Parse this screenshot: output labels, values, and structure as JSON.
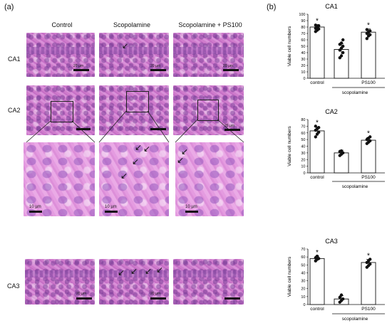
{
  "panel_labels": {
    "a": "(a)",
    "b": "(b)"
  },
  "columns": [
    "Control",
    "Scopolamine",
    "Scopolamine + PS100"
  ],
  "rows": [
    "CA1",
    "CA2",
    "CA3"
  ],
  "scale_labels": {
    "small": "20 µm",
    "zoom": "10 µm"
  },
  "chart_data": [
    {
      "type": "bar",
      "title": "CA1",
      "categories": [
        "control",
        "scopolamine",
        "PS100"
      ],
      "values": [
        80,
        45,
        72
      ],
      "errors": [
        4,
        9,
        5
      ],
      "points": [
        [
          73,
          75,
          77,
          78,
          80,
          82,
          83
        ],
        [
          32,
          35,
          40,
          44,
          47,
          50,
          53,
          55,
          60
        ],
        [
          62,
          66,
          68,
          70,
          72,
          74,
          76
        ]
      ],
      "significant": [
        true,
        false,
        true
      ],
      "ylabel": "Viable cell numbers",
      "xlabel": "",
      "group_label": "scopolamine",
      "ylim": [
        0,
        100
      ],
      "yticks": [
        0,
        10,
        20,
        30,
        40,
        50,
        60,
        70,
        80,
        90,
        100
      ],
      "grid": false
    },
    {
      "type": "bar",
      "title": "CA2",
      "categories": [
        "control",
        "scopolamine",
        "PS100"
      ],
      "values": [
        63,
        30,
        49
      ],
      "errors": [
        6,
        4,
        4
      ],
      "points": [
        [
          54,
          58,
          61,
          64,
          66,
          68,
          70
        ],
        [
          26,
          28,
          30,
          32,
          33
        ],
        [
          44,
          46,
          48,
          50,
          52,
          54
        ]
      ],
      "significant": [
        true,
        false,
        true
      ],
      "ylabel": "Viable cell numbers",
      "xlabel": "",
      "group_label": "scopolamine",
      "ylim": [
        0,
        80
      ],
      "yticks": [
        0,
        10,
        20,
        30,
        40,
        50,
        60,
        70,
        80
      ],
      "grid": false
    },
    {
      "type": "bar",
      "title": "CA3",
      "categories": [
        "control",
        "scopolamine",
        "PS100"
      ],
      "values": [
        58,
        7,
        53
      ],
      "errors": [
        3,
        4,
        4
      ],
      "points": [
        [
          55,
          57,
          58,
          59,
          61
        ],
        [
          3,
          5,
          7,
          9,
          12
        ],
        [
          47,
          49,
          51,
          53,
          55,
          57
        ]
      ],
      "significant": [
        true,
        false,
        true
      ],
      "ylabel": "Viable cell numbers",
      "xlabel": "",
      "group_label": "scopolamine",
      "ylim": [
        0,
        70
      ],
      "yticks": [
        0,
        10,
        20,
        30,
        40,
        50,
        60,
        70
      ],
      "grid": false
    }
  ]
}
